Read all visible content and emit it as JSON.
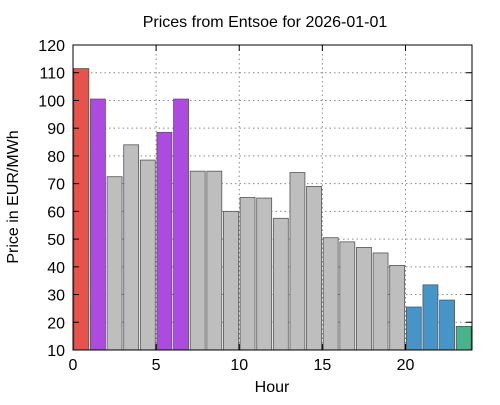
{
  "chart_data": {
    "type": "bar",
    "title": "Prices from Entsoe for 2026-01-01",
    "xlabel": "Hour",
    "ylabel": "Price in EUR/MWh",
    "xlim": [
      0,
      24
    ],
    "ylim": [
      10,
      120
    ],
    "x_ticks": [
      0,
      5,
      10,
      15,
      20
    ],
    "y_ticks": [
      10,
      20,
      30,
      40,
      50,
      60,
      70,
      80,
      90,
      100,
      110,
      120
    ],
    "grid": true,
    "legend": "none",
    "x": [
      0,
      1,
      2,
      3,
      4,
      5,
      6,
      7,
      8,
      9,
      10,
      11,
      12,
      13,
      14,
      15,
      16,
      17,
      18,
      19,
      20,
      21,
      22,
      23
    ],
    "values": [
      111.5,
      100.5,
      72.5,
      84,
      78.5,
      88.5,
      100.5,
      74.5,
      74.5,
      60,
      65,
      64.8,
      57.5,
      74,
      69,
      50.5,
      49,
      47,
      45,
      40.5,
      25.5,
      33.5,
      28,
      18.5
    ],
    "colors": [
      "#e8524a",
      "#ad4ae0",
      "#bebebe",
      "#bebebe",
      "#bebebe",
      "#ad4ae0",
      "#ad4ae0",
      "#bebebe",
      "#bebebe",
      "#bebebe",
      "#bebebe",
      "#bebebe",
      "#bebebe",
      "#bebebe",
      "#bebebe",
      "#bebebe",
      "#bebebe",
      "#bebebe",
      "#bebebe",
      "#bebebe",
      "#4595c9",
      "#4595c9",
      "#4595c9",
      "#46b38c"
    ]
  }
}
